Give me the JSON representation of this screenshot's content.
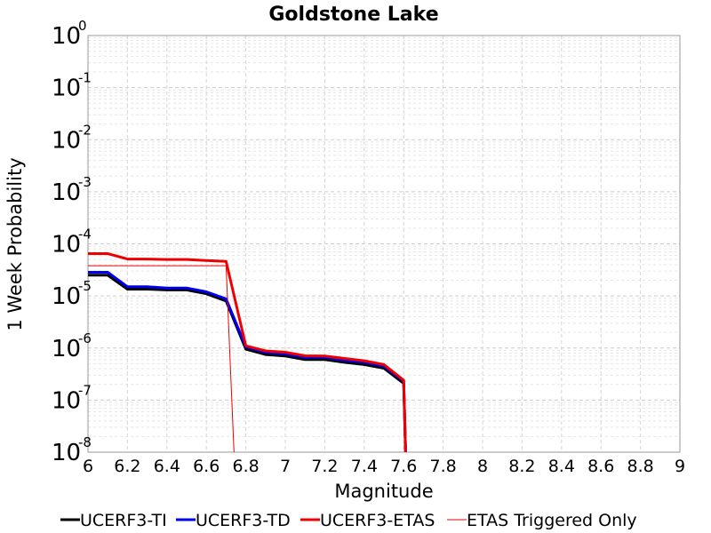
{
  "chart_data": {
    "type": "line",
    "title": "Goldstone Lake",
    "xlabel": "Magnitude",
    "ylabel": "1 Week Probability",
    "xlim": [
      6,
      9
    ],
    "ylim": [
      1e-08,
      1
    ],
    "y_scale": "log",
    "grid": true,
    "legend_position": "bottom",
    "x_ticks": [
      "6",
      "6.2",
      "6.4",
      "6.6",
      "6.8",
      "7",
      "7.2",
      "7.4",
      "7.6",
      "7.8",
      "8",
      "8.2",
      "8.4",
      "8.6",
      "8.8",
      "9"
    ],
    "y_ticks": [
      {
        "base": "10",
        "exp": "0"
      },
      {
        "base": "10",
        "exp": "-1"
      },
      {
        "base": "10",
        "exp": "-2"
      },
      {
        "base": "10",
        "exp": "-3"
      },
      {
        "base": "10",
        "exp": "-4"
      },
      {
        "base": "10",
        "exp": "-5"
      },
      {
        "base": "10",
        "exp": "-6"
      },
      {
        "base": "10",
        "exp": "-7"
      },
      {
        "base": "10",
        "exp": "-8"
      }
    ],
    "series": [
      {
        "name": "UCERF3-TI",
        "color": "#000000",
        "width": 3,
        "x": [
          6.0,
          6.1,
          6.2,
          6.3,
          6.4,
          6.5,
          6.6,
          6.7,
          6.8,
          6.9,
          7.0,
          7.1,
          7.2,
          7.3,
          7.4,
          7.5,
          7.6,
          7.61
        ],
        "y": [
          2.5e-05,
          2.5e-05,
          1.35e-05,
          1.35e-05,
          1.3e-05,
          1.3e-05,
          1.1e-05,
          8e-06,
          9.5e-07,
          7.5e-07,
          7e-07,
          6e-07,
          6e-07,
          5.3e-07,
          4.8e-07,
          4.1e-07,
          2.1e-07,
          1e-08
        ]
      },
      {
        "name": "UCERF3-TD",
        "color": "#0000ee",
        "width": 3,
        "x": [
          6.0,
          6.1,
          6.2,
          6.3,
          6.4,
          6.5,
          6.6,
          6.7,
          6.8,
          6.9,
          7.0,
          7.1,
          7.2,
          7.3,
          7.4,
          7.5,
          7.6,
          7.61
        ],
        "y": [
          2.85e-05,
          2.85e-05,
          1.5e-05,
          1.5e-05,
          1.42e-05,
          1.42e-05,
          1.2e-05,
          8.8e-06,
          1.05e-06,
          8.2e-07,
          7.7e-07,
          6.6e-07,
          6.6e-07,
          5.8e-07,
          5.3e-07,
          4.5e-07,
          2.3e-07,
          1e-08
        ]
      },
      {
        "name": "UCERF3-ETAS",
        "color": "#ee0000",
        "width": 3,
        "x": [
          6.0,
          6.1,
          6.2,
          6.3,
          6.4,
          6.5,
          6.6,
          6.7,
          6.8,
          6.9,
          7.0,
          7.1,
          7.2,
          7.3,
          7.4,
          7.5,
          7.6,
          7.61
        ],
        "y": [
          6.5e-05,
          6.5e-05,
          5.1e-05,
          5.1e-05,
          5e-05,
          5e-05,
          4.8e-05,
          4.6e-05,
          1.1e-06,
          8.8e-07,
          8.3e-07,
          7.1e-07,
          7e-07,
          6.3e-07,
          5.7e-07,
          4.8e-07,
          2.4e-07,
          1e-08
        ]
      },
      {
        "name": "ETAS Triggered Only",
        "color": "#ee0000",
        "width": 1,
        "x": [
          6.0,
          6.1,
          6.2,
          6.3,
          6.4,
          6.5,
          6.6,
          6.7,
          6.74
        ],
        "y": [
          3.8e-05,
          3.8e-05,
          3.8e-05,
          3.8e-05,
          3.8e-05,
          3.8e-05,
          3.8e-05,
          3.8e-05,
          1e-08
        ]
      }
    ]
  }
}
